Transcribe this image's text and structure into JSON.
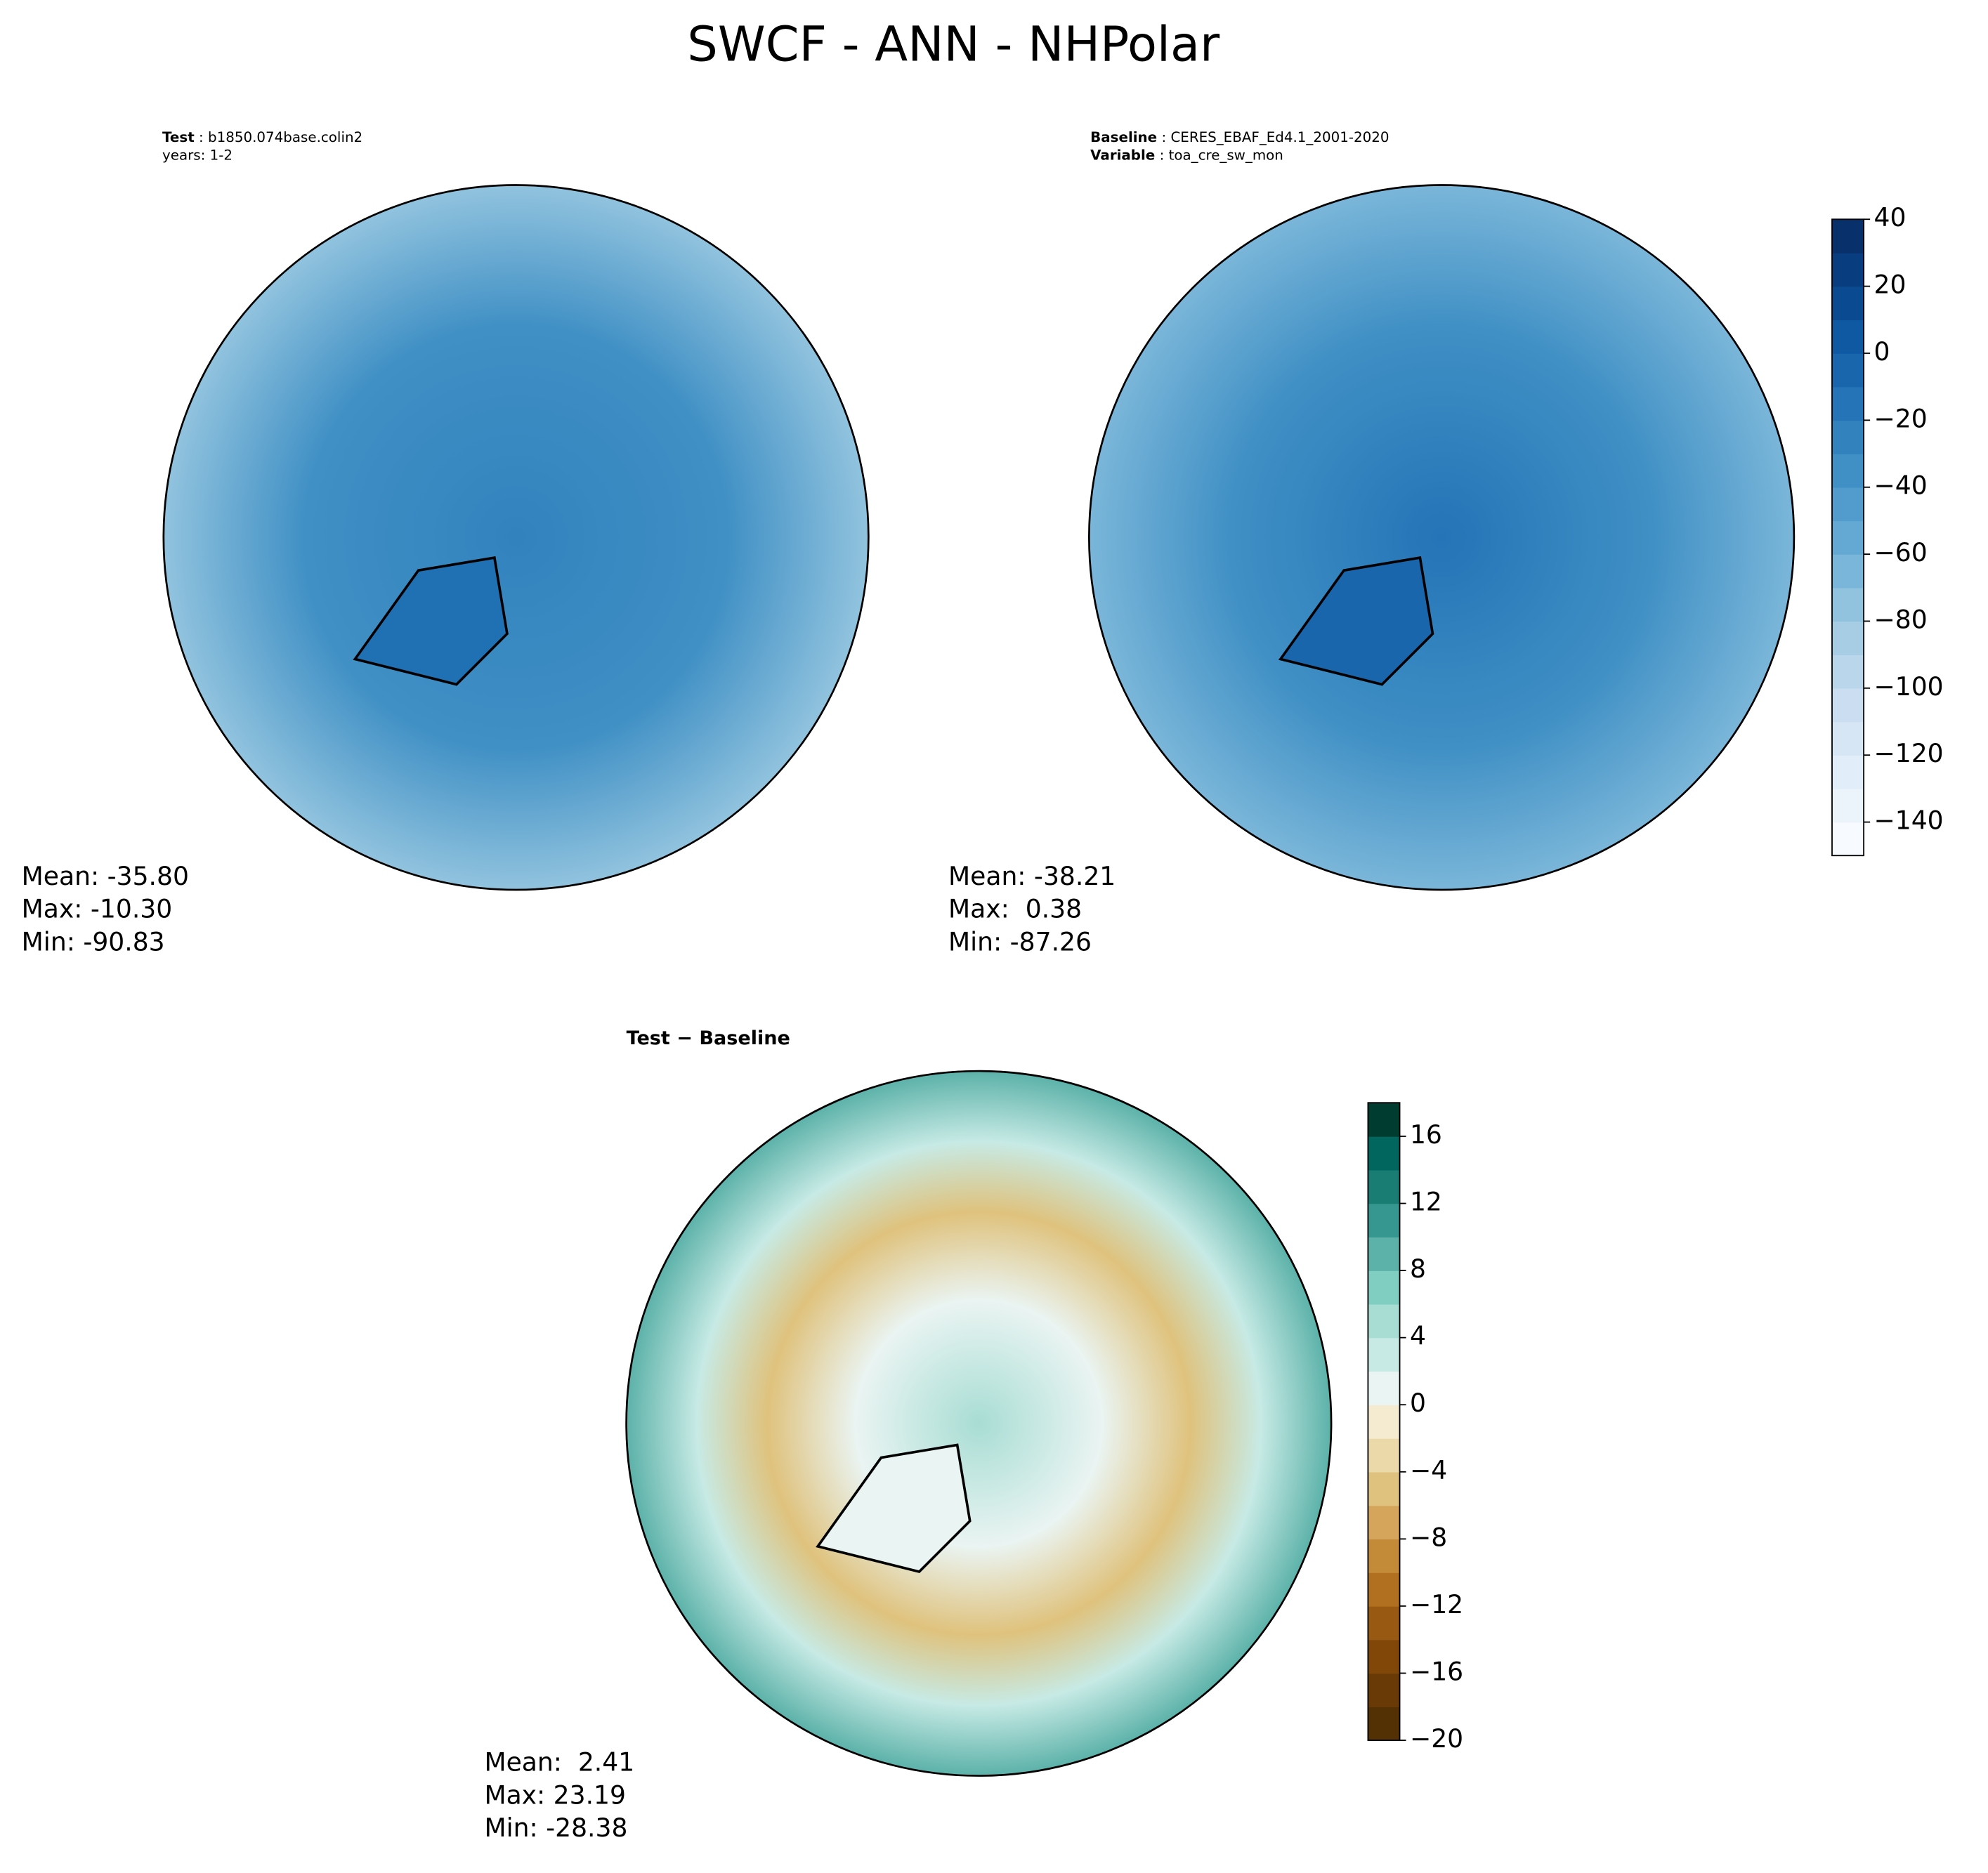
{
  "chart_data": {
    "type": "map",
    "title": "SWCF - ANN - NHPolar",
    "panels": [
      {
        "header": [
          {
            "bold": "Test",
            "text": " : b1850.074base.colin2"
          },
          {
            "text": "years: 1-2"
          }
        ],
        "stats": [
          "Mean: -35.80",
          "Max: -10.30",
          "Min: -90.83"
        ],
        "colorbar": 0
      },
      {
        "header": [
          {
            "bold": "Baseline",
            "text": " : CERES_EBAF_Ed4.1_2001-2020"
          },
          {
            "bold": "Variable",
            "text": " : toa_cre_sw_mon"
          }
        ],
        "stats": [
          "Mean: -38.21",
          "Max:  0.38",
          "Min: -87.26"
        ],
        "colorbar": 0
      },
      {
        "header": [
          {
            "bold": "Test − Baseline"
          }
        ],
        "stats": [
          "Mean:  2.41",
          "Max: 23.19",
          "Min: -28.38"
        ],
        "colorbar": 1
      }
    ],
    "colorbars": [
      {
        "ylim": [
          -150,
          40
        ],
        "levels": [
          -150,
          -140,
          -130,
          -120,
          -110,
          -100,
          -90,
          -80,
          -70,
          -60,
          -50,
          -40,
          -30,
          -20,
          -10,
          0,
          10,
          20,
          30,
          40
        ],
        "colors": [
          "#f7fbff",
          "#ebf3fb",
          "#e1edf8",
          "#d6e6f4",
          "#cbdef1",
          "#bad6eb",
          "#a6cde4",
          "#91c3de",
          "#7ab6d9",
          "#64a9d3",
          "#519ccc",
          "#4090c5",
          "#3282be",
          "#2474b7",
          "#1966ad",
          "#0e59a2",
          "#0a4a90",
          "#083d7f",
          "#08306b"
        ],
        "yticks": [
          40,
          20,
          0,
          {
            "value": -20,
            "label": "−20"
          },
          {
            "value": -40,
            "label": "−40"
          },
          {
            "value": -60,
            "label": "−60"
          },
          {
            "value": -80,
            "label": "−80"
          },
          {
            "value": -100,
            "label": "−100"
          },
          {
            "value": -120,
            "label": "−120"
          },
          {
            "value": -140,
            "label": "−140"
          }
        ]
      },
      {
        "ylim": [
          -20,
          18
        ],
        "levels": [
          -20,
          -18,
          -16,
          -14,
          -12,
          -10,
          -8,
          -6,
          -4,
          -2,
          0,
          2,
          4,
          6,
          8,
          10,
          12,
          14,
          16,
          18
        ],
        "colors": [
          "#543005",
          "#6a3a06",
          "#814709",
          "#985a12",
          "#b0701f",
          "#c38a38",
          "#d4a55b",
          "#dfc27d",
          "#ebd9a9",
          "#f5ebd0",
          "#eaf4f2",
          "#c7eae5",
          "#a8ddd4",
          "#80cdc1",
          "#5cb2a9",
          "#35978f",
          "#1a7d73",
          "#01665e",
          "#003c30"
        ],
        "yticks": [
          16,
          12,
          8,
          4,
          0,
          {
            "value": -4,
            "label": "−4"
          },
          {
            "value": -8,
            "label": "−8"
          },
          {
            "value": -12,
            "label": "−12"
          },
          {
            "value": -16,
            "label": "−16"
          },
          {
            "value": -20,
            "label": "−20"
          }
        ]
      }
    ]
  }
}
